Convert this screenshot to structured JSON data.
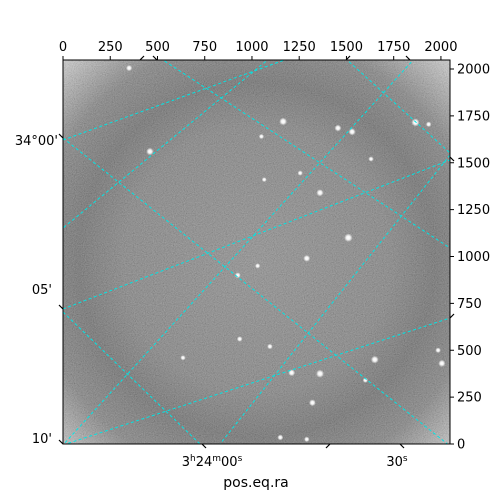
{
  "chart_data": {
    "type": "image",
    "xlabel": "pos.eq.ra",
    "pixel_axes": {
      "x_range": [
        0,
        2048
      ],
      "y_range": [
        0,
        2048
      ],
      "x_ticks": [
        0,
        250,
        500,
        750,
        1000,
        1250,
        1500,
        1750,
        2000
      ],
      "y_ticks": [
        0,
        250,
        500,
        750,
        1000,
        1250,
        1500,
        1750,
        2000
      ]
    },
    "world_axes": {
      "dec_tick_labels": [
        "34°00'",
        "05'",
        "10'"
      ],
      "ra_tick_labels": [
        {
          "h": "3",
          "m": "24",
          "s": "00"
        },
        {
          "h": "",
          "m": "",
          "s": "30"
        }
      ]
    },
    "grid": true,
    "grid_color": "#00e5e5",
    "image_colormap": "gray",
    "stars": [
      {
        "x": 1510,
        "y": 1100,
        "brightness": 0.95
      },
      {
        "x": 1360,
        "y": 375,
        "brightness": 0.9
      },
      {
        "x": 1650,
        "y": 450,
        "brightness": 0.85
      },
      {
        "x": 1865,
        "y": 1715,
        "brightness": 0.9
      },
      {
        "x": 460,
        "y": 1560,
        "brightness": 0.8
      },
      {
        "x": 1165,
        "y": 1720,
        "brightness": 0.85
      },
      {
        "x": 1360,
        "y": 1340,
        "brightness": 0.75
      },
      {
        "x": 1530,
        "y": 1665,
        "brightness": 0.75
      },
      {
        "x": 1455,
        "y": 1685,
        "brightness": 0.7
      },
      {
        "x": 1290,
        "y": 990,
        "brightness": 0.7
      },
      {
        "x": 1210,
        "y": 380,
        "brightness": 0.7
      },
      {
        "x": 1320,
        "y": 220,
        "brightness": 0.7
      },
      {
        "x": 2005,
        "y": 430,
        "brightness": 0.75
      },
      {
        "x": 350,
        "y": 2005,
        "brightness": 0.6
      },
      {
        "x": 925,
        "y": 900,
        "brightness": 0.55
      },
      {
        "x": 1095,
        "y": 520,
        "brightness": 0.5
      },
      {
        "x": 935,
        "y": 560,
        "brightness": 0.5
      },
      {
        "x": 1030,
        "y": 950,
        "brightness": 0.45
      },
      {
        "x": 1150,
        "y": 35,
        "brightness": 0.55
      },
      {
        "x": 1290,
        "y": 25,
        "brightness": 0.5
      },
      {
        "x": 1935,
        "y": 1705,
        "brightness": 0.5
      },
      {
        "x": 635,
        "y": 460,
        "brightness": 0.45
      },
      {
        "x": 1630,
        "y": 1520,
        "brightness": 0.45
      },
      {
        "x": 1985,
        "y": 500,
        "brightness": 0.5
      },
      {
        "x": 1050,
        "y": 1640,
        "brightness": 0.45
      },
      {
        "x": 1255,
        "y": 1445,
        "brightness": 0.45
      },
      {
        "x": 1065,
        "y": 1410,
        "brightness": 0.4
      },
      {
        "x": 1600,
        "y": 340,
        "brightness": 0.45
      }
    ]
  }
}
